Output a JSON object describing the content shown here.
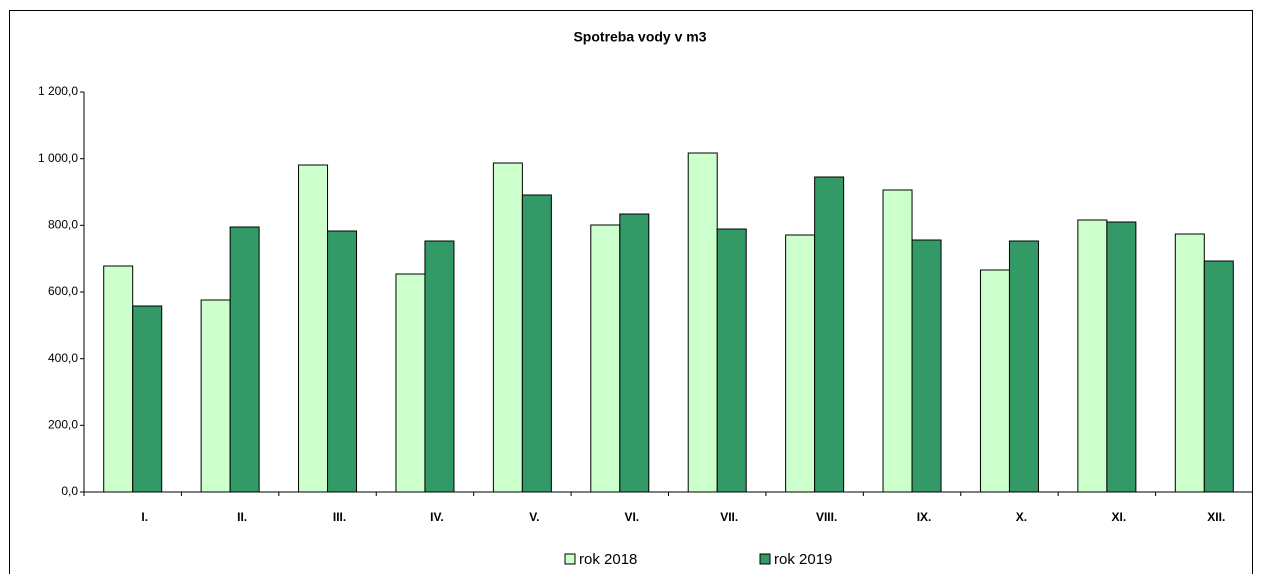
{
  "chart_data": {
    "type": "bar",
    "title": "Spotreba vody v m3",
    "categories": [
      "I.",
      "II.",
      "III.",
      "IV.",
      "V.",
      "VI.",
      "VII.",
      "VIII.",
      "IX.",
      "X.",
      "XI.",
      "XII."
    ],
    "series": [
      {
        "name": "rok 2018",
        "color": "#ccffcc",
        "values": [
          678,
          576,
          981,
          654,
          987,
          801,
          1017,
          771,
          906,
          666,
          816,
          774
        ]
      },
      {
        "name": "rok 2019",
        "color": "#339966",
        "values": [
          558,
          795,
          783,
          753,
          891,
          834,
          789,
          945,
          756,
          753,
          810,
          693
        ]
      }
    ],
    "ylim": [
      0,
      1200
    ],
    "yticks": [
      {
        "value": 0,
        "label": "0,0"
      },
      {
        "value": 200,
        "label": "200,0"
      },
      {
        "value": 400,
        "label": "400,0"
      },
      {
        "value": 600,
        "label": "600,0"
      },
      {
        "value": 800,
        "label": "800,0"
      },
      {
        "value": 1000,
        "label": "1 000,0"
      },
      {
        "value": 1200,
        "label": "1 200,0"
      }
    ],
    "grid": false,
    "legend": "bottom"
  }
}
